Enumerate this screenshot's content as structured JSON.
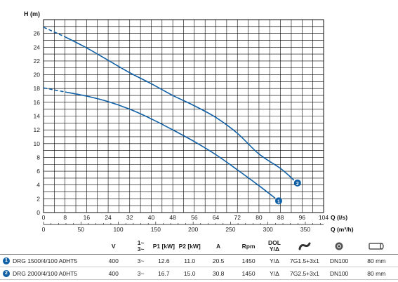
{
  "chart_data": {
    "type": "line",
    "ylabel": "H (m)",
    "xlabel": "Q (l/s)",
    "x2label": "Q (m³/h)",
    "xlim": [
      0,
      104
    ],
    "ylim": [
      0,
      28
    ],
    "x2lim": [
      0,
      374.4
    ],
    "x_ticks": [
      "0",
      "8",
      "16",
      "24",
      "32",
      "40",
      "48",
      "56",
      "64",
      "72",
      "80",
      "88",
      "96",
      "104"
    ],
    "x2_ticks": [
      "0",
      "50",
      "100",
      "150",
      "200",
      "250",
      "300",
      "350"
    ],
    "y_ticks": [
      "0",
      "2",
      "4",
      "6",
      "8",
      "10",
      "12",
      "14",
      "16",
      "18",
      "20",
      "22",
      "24",
      "26"
    ],
    "grid": true,
    "series": [
      {
        "name": "1",
        "color": "#0f5fa6",
        "dashed_x": [
          0,
          8
        ],
        "dashed_y": [
          18.1,
          17.5
        ],
        "x": [
          8,
          16,
          24,
          32,
          40,
          48,
          56,
          64,
          72,
          80,
          86
        ],
        "y": [
          17.5,
          16.9,
          16.1,
          15.0,
          13.6,
          12.0,
          10.3,
          8.4,
          6.2,
          3.9,
          2.1
        ]
      },
      {
        "name": "2",
        "color": "#0f5fa6",
        "dashed_x": [
          0,
          8
        ],
        "dashed_y": [
          26.9,
          25.5
        ],
        "x": [
          8,
          16,
          24,
          32,
          40,
          48,
          56,
          64,
          72,
          80,
          88,
          93
        ],
        "y": [
          25.5,
          23.9,
          22.1,
          20.3,
          18.7,
          17.0,
          15.5,
          13.8,
          11.5,
          8.5,
          6.4,
          4.7
        ]
      }
    ]
  },
  "table": {
    "headers": {
      "v": "V",
      "phase_top": "1~",
      "phase_bottom": "3~",
      "p1": "P1 [kW]",
      "p2": "P2 [kW]",
      "a": "A",
      "rpm": "Rpm",
      "dol_top": "DOL",
      "dol_bottom": "Y/Δ"
    },
    "icons": {
      "cable": "cable-icon",
      "pump_outlet": "pump-outlet-icon",
      "pipe": "pipe-diameter-icon"
    },
    "rows": [
      {
        "badge": "1",
        "model": "DRG 1500/4/100 A0HT5",
        "v": "400",
        "phase": "3~",
        "p1": "12.6",
        "p2": "11.0",
        "a": "20.5",
        "rpm": "1450",
        "dol": "Y/Δ",
        "cable": "7G1.5+3x1",
        "outlet": "DN100",
        "size": "80 mm"
      },
      {
        "badge": "2",
        "model": "DRG 2000/4/100 A0HT5",
        "v": "400",
        "phase": "3~",
        "p1": "16.7",
        "p2": "15.0",
        "a": "30.8",
        "rpm": "1450",
        "dol": "Y/Δ",
        "cable": "7G2.5+3x1",
        "outlet": "DN100",
        "size": "80 mm"
      }
    ]
  }
}
